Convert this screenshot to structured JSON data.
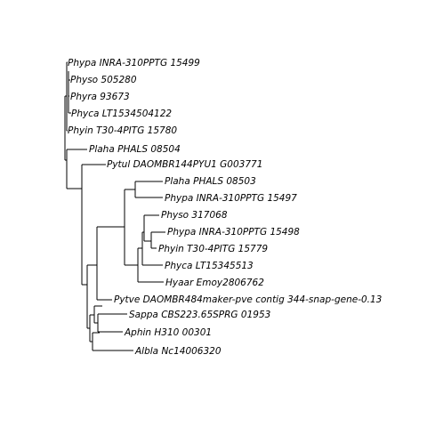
{
  "figure": {
    "type": "phylogenetic-tree",
    "background": "#ffffff",
    "line_color": "#000000",
    "label_style": "italic"
  },
  "tips": [
    "Phypa INRA-310PPTG 15499",
    "Physo 505280",
    "Phyra 93673",
    "Phyca LT1534504122",
    "Phyin T30-4PITG 15780",
    "Plaha PHALS 08504",
    "Pytul DAOMBR144PYU1 G003771",
    "Plaha PHALS 08503",
    "Phypa INRA-310PPTG 15497",
    "Physo 317068",
    "Phypa INRA-310PPTG 15498",
    "Phyin T30-4PITG 15779",
    "Phyca LT15345513",
    "Hyaar Emoy2806762",
    "Pytve DAOMBR484maker-pve contig 344-snap-gene-0.13",
    "Sappa CBS223.65SPRG 01953",
    "Aphin H310 00301",
    "Albla Nc14006320"
  ]
}
